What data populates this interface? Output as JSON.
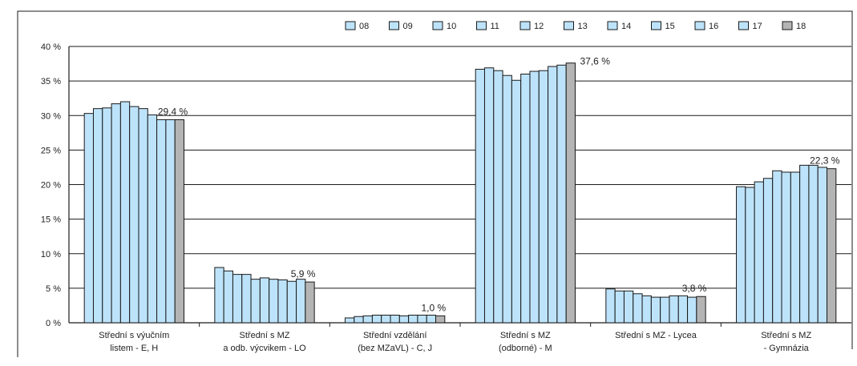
{
  "chart_data": {
    "type": "bar",
    "title": "",
    "xlabel": "",
    "ylabel": "",
    "ylim": [
      0,
      40
    ],
    "yticks": [
      {
        "value": 0,
        "label": "0 %"
      },
      {
        "value": 5,
        "label": "5 %"
      },
      {
        "value": 10,
        "label": "10 %"
      },
      {
        "value": 15,
        "label": "15 %"
      },
      {
        "value": 20,
        "label": "20 %"
      },
      {
        "value": 25,
        "label": "25 %"
      },
      {
        "value": 30,
        "label": "30 %"
      },
      {
        "value": 35,
        "label": "35 %"
      },
      {
        "value": 40,
        "label": "40 %"
      }
    ],
    "grid": true,
    "legend_position": "top-right",
    "colors": {
      "default": "#bde3fa",
      "highlight": "#b4b4b4",
      "stroke": "#1a1a1a"
    },
    "series": [
      {
        "name": "08",
        "color": "#bde3fa",
        "values": [
          30.3,
          8.0,
          0.7,
          36.7,
          4.9,
          19.7
        ]
      },
      {
        "name": "09",
        "color": "#bde3fa",
        "values": [
          31.0,
          7.5,
          0.9,
          36.9,
          4.6,
          19.6
        ]
      },
      {
        "name": "10",
        "color": "#bde3fa",
        "values": [
          31.1,
          7.0,
          1.0,
          36.5,
          4.6,
          20.4
        ]
      },
      {
        "name": "11",
        "color": "#bde3fa",
        "values": [
          31.7,
          7.0,
          1.1,
          35.8,
          4.2,
          20.9
        ]
      },
      {
        "name": "12",
        "color": "#bde3fa",
        "values": [
          32.0,
          6.3,
          1.1,
          35.1,
          3.9,
          22.0
        ]
      },
      {
        "name": "13",
        "color": "#bde3fa",
        "values": [
          31.3,
          6.5,
          1.1,
          36.0,
          3.7,
          21.8
        ]
      },
      {
        "name": "14",
        "color": "#bde3fa",
        "values": [
          31.0,
          6.3,
          1.0,
          36.4,
          3.7,
          21.8
        ]
      },
      {
        "name": "15",
        "color": "#bde3fa",
        "values": [
          30.1,
          6.2,
          1.1,
          36.5,
          3.9,
          22.8
        ]
      },
      {
        "name": "16",
        "color": "#bde3fa",
        "values": [
          29.4,
          6.0,
          1.1,
          37.1,
          3.9,
          22.8
        ]
      },
      {
        "name": "17",
        "color": "#bde3fa",
        "values": [
          29.4,
          6.3,
          1.1,
          37.3,
          3.7,
          22.5
        ]
      },
      {
        "name": "18",
        "color": "#b4b4b4",
        "values": [
          29.4,
          5.9,
          1.0,
          37.6,
          3.8,
          22.3
        ]
      }
    ],
    "categories": [
      {
        "lines": [
          "Střední s výučním",
          "listem - E, H"
        ]
      },
      {
        "lines": [
          "Střední s MZ",
          "a odb. výcvikem - LO"
        ]
      },
      {
        "lines": [
          "Střední vzdělání",
          "(bez MZaVL) - C, J"
        ]
      },
      {
        "lines": [
          "Střední s MZ",
          "(odborné) - M"
        ]
      },
      {
        "lines": [
          "Střední s MZ - Lycea"
        ]
      },
      {
        "lines": [
          "Střední s MZ",
          "- Gymnázia"
        ]
      }
    ],
    "annotations": [
      "29,4 %",
      "5,9 %",
      "1,0 %",
      "37,6 %",
      "3,8 %",
      "22,3 %"
    ]
  }
}
